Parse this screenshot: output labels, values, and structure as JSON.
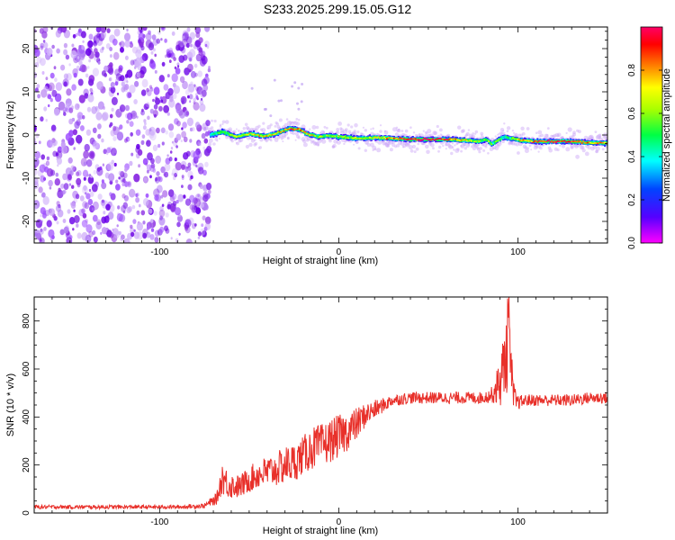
{
  "title": "S233.2025.299.15.05.G12",
  "colors": {
    "snr_line": "#e8302a",
    "noise_purple": "#6a00e8",
    "axis": "#000000"
  },
  "colorbar": {
    "label": "Normalized spectral amplitude",
    "ticks": [
      "0.0",
      "0.2",
      "0.4",
      "0.6",
      "0.8"
    ],
    "stops": [
      "#ff00ff",
      "#0000ff",
      "#00ffff",
      "#00ff00",
      "#ffff00",
      "#ff0000",
      "#ff00aa"
    ]
  },
  "chart_data": [
    {
      "type": "heatmap",
      "xlabel": "Height of straight line (km)",
      "ylabel": "Frequency (Hz)",
      "xlim": [
        -170,
        150
      ],
      "ylim": [
        -25,
        25
      ],
      "xticks": [
        -100,
        0,
        100
      ],
      "yticks": [
        -20,
        -10,
        0,
        10,
        20
      ],
      "noise_region_x": [
        -170,
        -72
      ],
      "signal_track": {
        "x": [
          -72,
          -65,
          -58,
          -50,
          -42,
          -35,
          -28,
          -22,
          -18,
          -12,
          -5,
          0,
          10,
          20,
          30,
          40,
          50,
          60,
          70,
          78,
          82,
          85,
          88,
          92,
          96,
          100,
          110,
          120,
          130,
          140,
          150
        ],
        "frequency": [
          0.0,
          0.8,
          -0.4,
          0.3,
          -0.3,
          0.4,
          1.5,
          1.2,
          0.2,
          -0.4,
          -0.2,
          -0.4,
          -0.8,
          -0.6,
          -0.8,
          -1.0,
          -1.0,
          -1.0,
          -1.2,
          -1.5,
          -1.0,
          -2.2,
          -1.2,
          -0.5,
          -0.8,
          -1.2,
          -1.5,
          -1.5,
          -1.5,
          -1.8,
          -1.8
        ],
        "amplitude": [
          0.35,
          0.55,
          0.6,
          0.7,
          0.75,
          0.72,
          0.85,
          0.8,
          0.78,
          0.6,
          0.55,
          0.6,
          0.65,
          0.65,
          0.85,
          0.95,
          0.95,
          0.9,
          0.7,
          0.55,
          0.6,
          0.5,
          0.55,
          0.45,
          0.5,
          0.7,
          0.9,
          0.95,
          0.85,
          0.8,
          0.75
        ]
      }
    },
    {
      "type": "line",
      "xlabel": "Height of straight line (km)",
      "ylabel": "SNR (10 * v/v)",
      "xlim": [
        -170,
        150
      ],
      "ylim": [
        0,
        900
      ],
      "xticks": [
        -100,
        0,
        100
      ],
      "yticks": [
        0,
        200,
        400,
        600,
        800
      ],
      "series": [
        {
          "x": [
            -170,
            -150,
            -130,
            -110,
            -90,
            -75,
            -68,
            -65,
            -62,
            -58,
            -55,
            -50,
            -45,
            -40,
            -35,
            -30,
            -25,
            -20,
            -15,
            -10,
            -5,
            0,
            5,
            10,
            15,
            20,
            25,
            30,
            40,
            50,
            60,
            70,
            80,
            85,
            88,
            90,
            92,
            94,
            95,
            96,
            98,
            100,
            105,
            110,
            120,
            130,
            140,
            150
          ],
          "y": [
            25,
            25,
            25,
            25,
            25,
            30,
            60,
            150,
            120,
            110,
            110,
            140,
            160,
            170,
            180,
            200,
            210,
            240,
            270,
            280,
            300,
            320,
            340,
            370,
            410,
            430,
            450,
            470,
            480,
            480,
            480,
            480,
            480,
            490,
            520,
            550,
            600,
            700,
            900,
            560,
            470,
            460,
            470,
            470,
            470,
            470,
            480,
            480
          ],
          "noise": [
            8,
            8,
            8,
            8,
            8,
            10,
            25,
            70,
            60,
            50,
            50,
            55,
            60,
            70,
            70,
            80,
            80,
            80,
            90,
            90,
            90,
            90,
            80,
            70,
            50,
            40,
            30,
            25,
            25,
            25,
            25,
            25,
            25,
            30,
            70,
            110,
            150,
            200,
            0,
            160,
            60,
            30,
            25,
            25,
            25,
            25,
            25,
            25
          ]
        }
      ]
    }
  ]
}
